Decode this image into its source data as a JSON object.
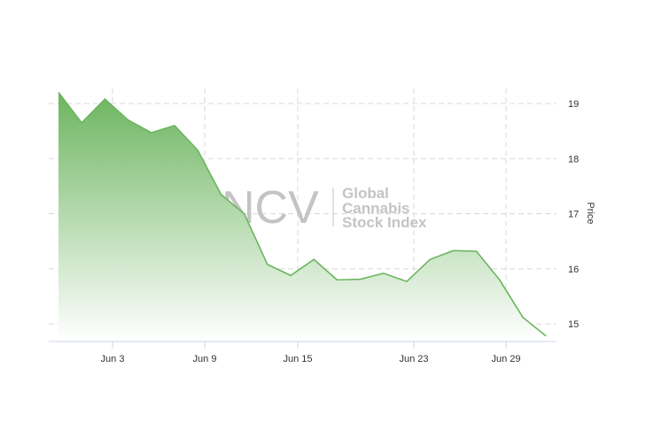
{
  "chart_data": {
    "type": "area",
    "title": "",
    "xlabel": "",
    "ylabel": "Price",
    "x_tick_labels": [
      "Jun 3",
      "Jun 9",
      "Jun 15",
      "Jun 23",
      "Jun 29"
    ],
    "y_tick_labels": [
      "15",
      "16",
      "17",
      "18",
      "19"
    ],
    "ylim": [
      14.75,
      19.2
    ],
    "grid": true,
    "y_axis_position": "right",
    "series": [
      {
        "values": [
          19.2,
          18.65,
          19.08,
          18.7,
          18.47,
          18.6,
          18.15,
          17.35,
          17.0,
          16.08,
          15.88,
          16.17,
          15.8,
          15.81,
          15.92,
          15.77,
          16.17,
          16.33,
          16.32,
          15.8,
          15.12,
          14.78
        ]
      }
    ],
    "line_color": "#6cb55f",
    "fill_color_top": "#6cb55f",
    "fill_color_bottom": "#ffffff"
  },
  "watermark": {
    "logo_text": "NCV",
    "line1": "Global",
    "line2": "Cannabis",
    "line3": "Stock Index"
  }
}
